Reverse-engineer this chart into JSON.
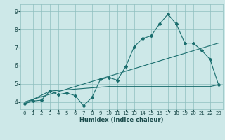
{
  "title": "",
  "xlabel": "Humidex (Indice chaleur)",
  "bg_color": "#cde8e8",
  "grid_color": "#8fbfbf",
  "line_color": "#1a6e6e",
  "xlim": [
    -0.5,
    23.5
  ],
  "ylim": [
    3.6,
    9.4
  ],
  "xticks": [
    0,
    1,
    2,
    3,
    4,
    5,
    6,
    7,
    8,
    9,
    10,
    11,
    12,
    13,
    14,
    15,
    16,
    17,
    18,
    19,
    20,
    21,
    22,
    23
  ],
  "yticks": [
    4,
    5,
    6,
    7,
    8,
    9
  ],
  "main_x": [
    0,
    1,
    2,
    3,
    4,
    5,
    6,
    7,
    8,
    9,
    10,
    11,
    12,
    13,
    14,
    15,
    16,
    17,
    18,
    19,
    20,
    21,
    22,
    23
  ],
  "main_y": [
    3.9,
    4.05,
    4.1,
    4.6,
    4.4,
    4.5,
    4.35,
    3.8,
    4.25,
    5.25,
    5.35,
    5.2,
    5.95,
    7.05,
    7.5,
    7.65,
    8.3,
    8.85,
    8.3,
    7.25,
    7.25,
    6.85,
    6.35,
    4.95
  ],
  "trend_line_x": [
    0,
    23
  ],
  "trend_line_y": [
    4.0,
    7.25
  ],
  "envelope_x": [
    0,
    3,
    10,
    19,
    22,
    23
  ],
  "envelope_y": [
    3.9,
    4.6,
    4.85,
    4.85,
    4.85,
    4.95
  ]
}
